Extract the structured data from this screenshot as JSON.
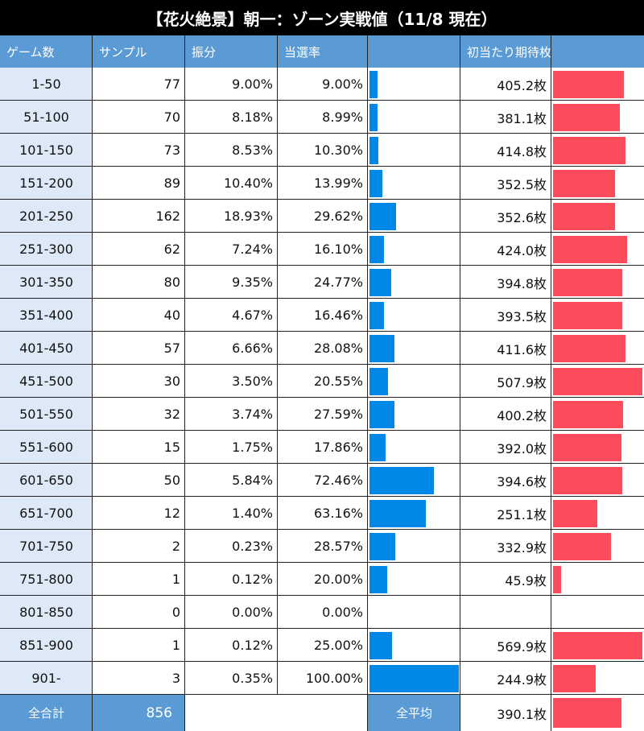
{
  "title": "【花火絶景】朝一：ゾーン実戦値（11/8 現在）",
  "chart_data": {
    "type": "table",
    "columns": [
      "ゲーム数",
      "サンプル",
      "振分",
      "当選率",
      "",
      "初当たり期待枚数",
      ""
    ],
    "rows": [
      {
        "range": "1-50",
        "sample": "77",
        "dist": "9.00%",
        "rate": "9.00%",
        "rate_value": 9.0,
        "expect": "405.2枚",
        "expect_value": 405.2
      },
      {
        "range": "51-100",
        "sample": "70",
        "dist": "8.18%",
        "rate": "8.99%",
        "rate_value": 8.99,
        "expect": "381.1枚",
        "expect_value": 381.1
      },
      {
        "range": "101-150",
        "sample": "73",
        "dist": "8.53%",
        "rate": "10.30%",
        "rate_value": 10.3,
        "expect": "414.8枚",
        "expect_value": 414.8
      },
      {
        "range": "151-200",
        "sample": "89",
        "dist": "10.40%",
        "rate": "13.99%",
        "rate_value": 13.99,
        "expect": "352.5枚",
        "expect_value": 352.5
      },
      {
        "range": "201-250",
        "sample": "162",
        "dist": "18.93%",
        "rate": "29.62%",
        "rate_value": 29.62,
        "expect": "352.6枚",
        "expect_value": 352.6
      },
      {
        "range": "251-300",
        "sample": "62",
        "dist": "7.24%",
        "rate": "16.10%",
        "rate_value": 16.1,
        "expect": "424.0枚",
        "expect_value": 424.0
      },
      {
        "range": "301-350",
        "sample": "80",
        "dist": "9.35%",
        "rate": "24.77%",
        "rate_value": 24.77,
        "expect": "394.8枚",
        "expect_value": 394.8
      },
      {
        "range": "351-400",
        "sample": "40",
        "dist": "4.67%",
        "rate": "16.46%",
        "rate_value": 16.46,
        "expect": "393.5枚",
        "expect_value": 393.5
      },
      {
        "range": "401-450",
        "sample": "57",
        "dist": "6.66%",
        "rate": "28.08%",
        "rate_value": 28.08,
        "expect": "411.6枚",
        "expect_value": 411.6
      },
      {
        "range": "451-500",
        "sample": "30",
        "dist": "3.50%",
        "rate": "20.55%",
        "rate_value": 20.55,
        "expect": "507.9枚",
        "expect_value": 507.9
      },
      {
        "range": "501-550",
        "sample": "32",
        "dist": "3.74%",
        "rate": "27.59%",
        "rate_value": 27.59,
        "expect": "400.2枚",
        "expect_value": 400.2
      },
      {
        "range": "551-600",
        "sample": "15",
        "dist": "1.75%",
        "rate": "17.86%",
        "rate_value": 17.86,
        "expect": "392.0枚",
        "expect_value": 392.0
      },
      {
        "range": "601-650",
        "sample": "50",
        "dist": "5.84%",
        "rate": "72.46%",
        "rate_value": 72.46,
        "expect": "394.6枚",
        "expect_value": 394.6
      },
      {
        "range": "651-700",
        "sample": "12",
        "dist": "1.40%",
        "rate": "63.16%",
        "rate_value": 63.16,
        "expect": "251.1枚",
        "expect_value": 251.1
      },
      {
        "range": "701-750",
        "sample": "2",
        "dist": "0.23%",
        "rate": "28.57%",
        "rate_value": 28.57,
        "expect": "332.9枚",
        "expect_value": 332.9
      },
      {
        "range": "751-800",
        "sample": "1",
        "dist": "0.12%",
        "rate": "20.00%",
        "rate_value": 20.0,
        "expect": "45.9枚",
        "expect_value": 45.9
      },
      {
        "range": "801-850",
        "sample": "0",
        "dist": "0.00%",
        "rate": "0.00%",
        "rate_value": 0,
        "expect": "",
        "expect_value": null
      },
      {
        "range": "851-900",
        "sample": "1",
        "dist": "0.12%",
        "rate": "25.00%",
        "rate_value": 25.0,
        "expect": "569.9枚",
        "expect_value": 569.9
      },
      {
        "range": "901-",
        "sample": "3",
        "dist": "0.35%",
        "rate": "100.00%",
        "rate_value": 100.0,
        "expect": "244.9枚",
        "expect_value": 244.9
      }
    ],
    "footer": {
      "total_label": "全合計",
      "total_sample": "856",
      "avg_label": "全平均",
      "avg_expect": "390.1枚",
      "avg_expect_value": 390.1
    },
    "rate_bar_color": "#0088e8",
    "expect_bar_color": "#fc4c5c",
    "header_color": "#5b9bd5"
  }
}
